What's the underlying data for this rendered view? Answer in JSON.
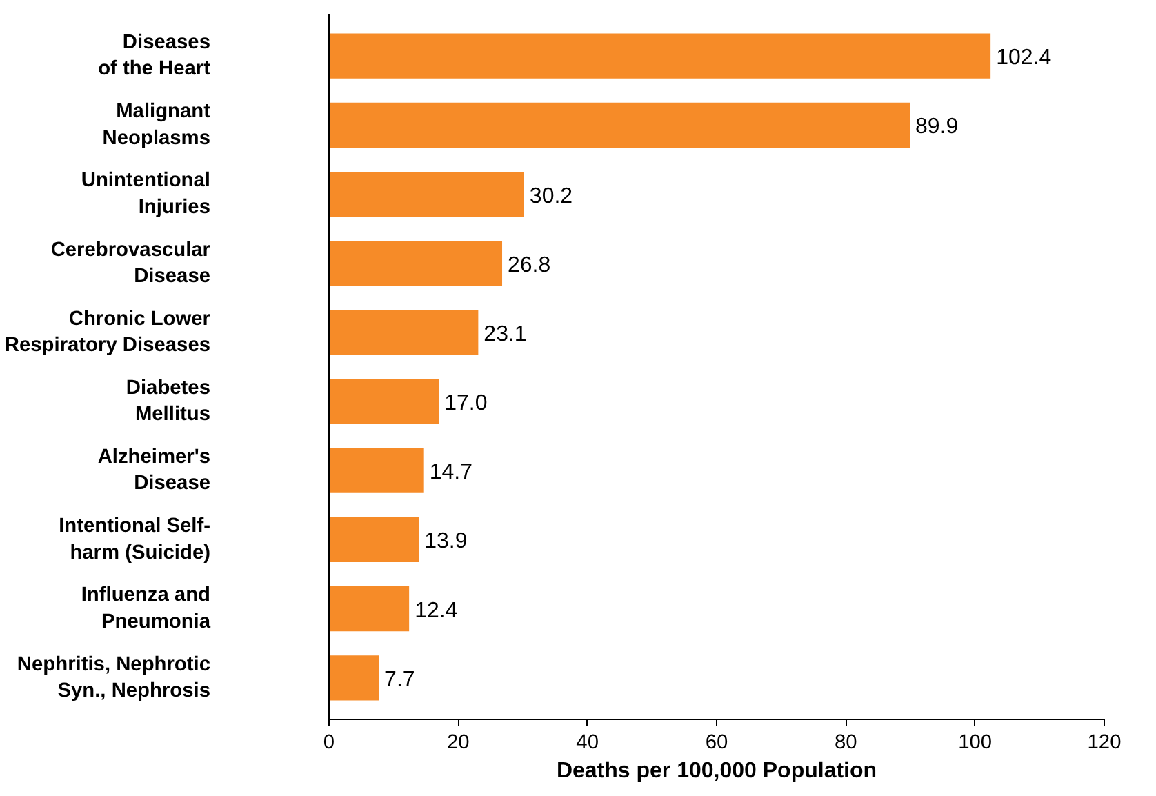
{
  "chart_data": {
    "type": "bar",
    "orientation": "horizontal",
    "categories": [
      "Diseases\nof the Heart",
      "Malignant\nNeoplasms",
      "Unintentional\nInjuries",
      "Cerebrovascular\nDisease",
      "Chronic Lower\nRespiratory Diseases",
      "Diabetes\nMellitus",
      "Alzheimer's\nDisease",
      "Intentional Self-\nharm (Suicide)",
      "Influenza and\nPneumonia",
      "Nephritis, Nephrotic\nSyn., Nephrosis"
    ],
    "values": [
      102.4,
      89.9,
      30.2,
      26.8,
      23.1,
      17.0,
      14.7,
      13.9,
      12.4,
      7.7
    ],
    "value_labels": [
      "102.4",
      "89.9",
      "30.2",
      "26.8",
      "23.1",
      "17.0",
      "14.7",
      "13.9",
      "12.4",
      "7.7"
    ],
    "color": "#f68b28",
    "xlabel": "Deaths per 100,000 Population",
    "xlim": [
      0,
      120
    ],
    "xticks": [
      0,
      20,
      40,
      60,
      80,
      100,
      120
    ],
    "grid": false
  }
}
